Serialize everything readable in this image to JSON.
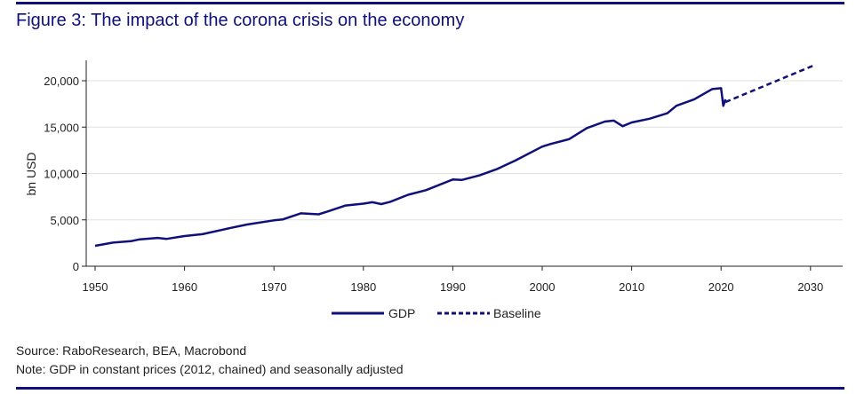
{
  "title": "Figure 3: The impact of the corona crisis on the economy",
  "source": "Source: RaboResearch, BEA, Macrobond",
  "note": "Note: GDP in constant prices (2012, chained) and seasonally adjusted",
  "colors": {
    "accent": "#10107a",
    "grid": "#e0e0e0"
  },
  "chart_data": {
    "type": "line",
    "title": "Figure 3: The impact of the corona crisis on the economy",
    "xlabel": "",
    "ylabel": "bn USD",
    "xlim": [
      1950,
      2033
    ],
    "ylim": [
      0,
      22000
    ],
    "xticks": [
      1950,
      1960,
      1970,
      1980,
      1990,
      2000,
      2010,
      2020,
      2030
    ],
    "xtick_labels": [
      "1950",
      "1960",
      "1970",
      "1980",
      "1990",
      "2000",
      "2010",
      "2020",
      "2030"
    ],
    "yticks": [
      0,
      5000,
      10000,
      15000,
      20000
    ],
    "ytick_labels": [
      "0",
      "5,000",
      "10,000",
      "15,000",
      "20,000"
    ],
    "grid": true,
    "legend_position": "bottom-center",
    "series": [
      {
        "name": "GDP",
        "style": "solid",
        "x": [
          1950,
          1952,
          1954,
          1955,
          1957,
          1958,
          1960,
          1962,
          1965,
          1967,
          1970,
          1971,
          1973,
          1975,
          1976,
          1978,
          1980,
          1981,
          1982,
          1983,
          1985,
          1987,
          1990,
          1991,
          1993,
          1995,
          1997,
          2000,
          2001,
          2003,
          2005,
          2007,
          2008,
          2009,
          2010,
          2012,
          2014,
          2015,
          2017,
          2019,
          2020.0,
          2020.25,
          2020.5
        ],
        "y": [
          2200,
          2550,
          2700,
          2900,
          3050,
          2950,
          3250,
          3450,
          4100,
          4500,
          4950,
          5050,
          5700,
          5600,
          5900,
          6550,
          6750,
          6900,
          6700,
          6950,
          7700,
          8200,
          9350,
          9300,
          9800,
          10500,
          11400,
          12900,
          13200,
          13700,
          14900,
          15600,
          15700,
          15100,
          15500,
          15900,
          16500,
          17300,
          18000,
          19100,
          19200,
          17300,
          18000
        ]
      },
      {
        "name": "Baseline",
        "style": "dashed",
        "x": [
          2020.5,
          2030.5
        ],
        "y": [
          17700,
          21700
        ]
      }
    ]
  }
}
